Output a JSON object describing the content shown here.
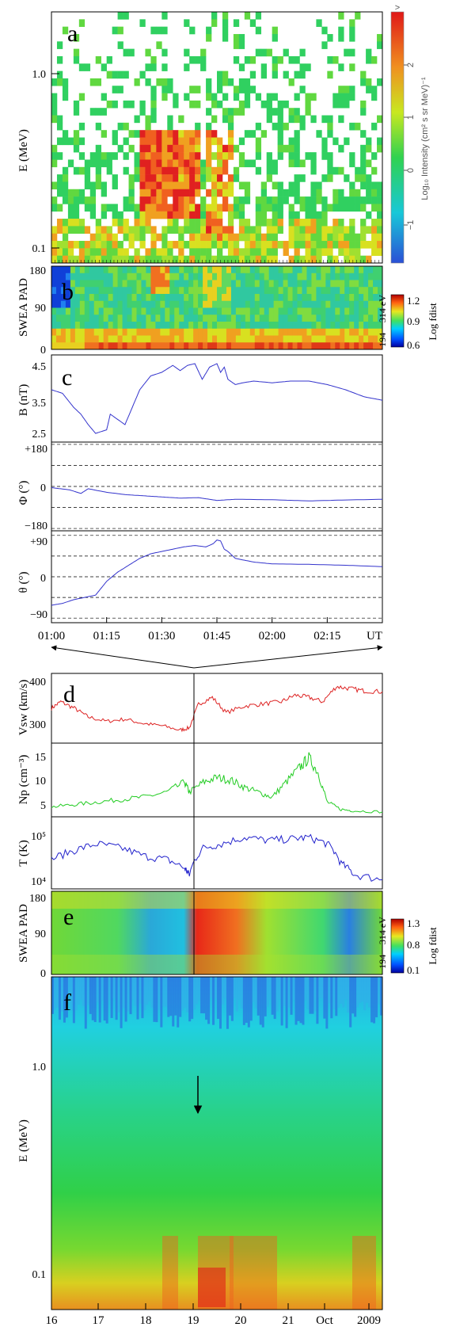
{
  "figure": {
    "panel_letters": [
      "a",
      "b",
      "c",
      "d",
      "e",
      "f"
    ]
  },
  "colorbars": {
    "top": {
      "title": "Log₁₀ Intensity (cm² s sr MeV)⁻¹",
      "ticks": [
        "2",
        "1",
        "0",
        "−1"
      ],
      "overflow_mark": ">"
    },
    "swea1": {
      "energy": "194 − 314 eV",
      "title": "Log fdist",
      "ticks": [
        "1.2",
        "0.9",
        "0.6"
      ]
    },
    "swea2": {
      "energy": "194 − 314 eV",
      "title": "Log fdist",
      "ticks": [
        "1.3",
        "0.8",
        "0.1"
      ]
    }
  },
  "chart_data": [
    {
      "panel": "a",
      "type": "heatmap",
      "ylabel": "E (MeV)",
      "yscale": "log",
      "ytick_labels": [
        "1.0",
        "0.1"
      ],
      "x_range": [
        "01:00",
        "02:30"
      ],
      "note": "sparse counts with an enhancement near 01:24-01:40 at 0.15-0.3 MeV"
    },
    {
      "panel": "b",
      "type": "heatmap",
      "ylabel": "SWEA PAD",
      "ytick_labels": [
        "180",
        "90",
        "0"
      ],
      "ylim": [
        0,
        180
      ],
      "color_range": [
        0.6,
        1.2
      ]
    },
    {
      "panel": "c",
      "type": "line",
      "ylabel": "B (nT)",
      "ytick_labels": [
        "4.5",
        "3.5",
        "2.5"
      ],
      "ylim": [
        2.3,
        4.8
      ],
      "x": [
        0,
        3,
        6,
        8,
        10,
        12,
        15,
        16,
        20,
        24,
        27,
        30,
        33,
        35,
        37,
        39,
        41,
        43,
        45,
        46,
        47,
        48,
        50,
        52,
        55,
        60,
        65,
        70,
        75,
        80,
        85,
        90
      ],
      "values": [
        3.8,
        3.7,
        3.3,
        3.1,
        2.8,
        2.55,
        2.65,
        3.1,
        2.8,
        3.8,
        4.2,
        4.3,
        4.5,
        4.35,
        4.5,
        4.55,
        4.1,
        4.45,
        4.55,
        4.3,
        4.45,
        4.1,
        3.95,
        4.0,
        4.05,
        4.0,
        4.05,
        4.05,
        3.95,
        3.8,
        3.6,
        3.5
      ],
      "color": "#3333cc"
    },
    {
      "panel": "c",
      "type": "line",
      "ylabel": "Φ (°)",
      "ytick_labels": [
        "+180",
        "0",
        "−180"
      ],
      "ylim": [
        -190,
        190
      ],
      "reference_lines": [
        180,
        90,
        0,
        -90,
        -180
      ],
      "x": [
        0,
        5,
        8,
        10,
        15,
        20,
        25,
        30,
        35,
        40,
        45,
        50,
        60,
        70,
        80,
        90
      ],
      "values": [
        -5,
        -15,
        -30,
        -10,
        -25,
        -35,
        -40,
        -45,
        -50,
        -48,
        -60,
        -55,
        -57,
        -62,
        -58,
        -55
      ],
      "color": "#3333cc"
    },
    {
      "panel": "c",
      "type": "line",
      "ylabel": "θ (°)",
      "ytick_labels": [
        "+90",
        "0",
        "−90"
      ],
      "ylim": [
        -100,
        100
      ],
      "reference_lines": [
        90,
        45,
        0,
        -45,
        -90
      ],
      "x": [
        0,
        3,
        6,
        9,
        12,
        15,
        18,
        21,
        24,
        27,
        30,
        33,
        36,
        39,
        42,
        44,
        45,
        46,
        47,
        48,
        50,
        55,
        60,
        70,
        80,
        90
      ],
      "values": [
        -62,
        -58,
        -50,
        -45,
        -40,
        -10,
        10,
        25,
        40,
        50,
        55,
        60,
        65,
        68,
        65,
        72,
        80,
        78,
        60,
        55,
        40,
        32,
        28,
        27,
        25,
        22
      ],
      "color": "#3333cc",
      "x_tick_labels": [
        "01:00",
        "01:15",
        "01:30",
        "01:45",
        "02:00",
        "02:15",
        "UT"
      ]
    },
    {
      "panel": "d",
      "type": "line",
      "ylabel": "Vsw (km/s)",
      "ytick_labels": [
        "400",
        "300"
      ],
      "ylim": [
        250,
        410
      ],
      "x": [
        16,
        16.2,
        16.5,
        16.8,
        17.2,
        17.6,
        18.0,
        18.4,
        18.8,
        19.0,
        19.2,
        19.5,
        19.8,
        20.2,
        20.6,
        21.0,
        21.3,
        21.6,
        21.9,
        22.2,
        22.5,
        22.8,
        23.2
      ],
      "values": [
        330,
        345,
        330,
        310,
        300,
        305,
        295,
        290,
        280,
        285,
        340,
        355,
        320,
        335,
        340,
        345,
        360,
        355,
        345,
        380,
        375,
        370,
        368
      ],
      "color": "#dd2222"
    },
    {
      "panel": "d",
      "type": "line",
      "ylabel": "Np (cm⁻³)",
      "ytick_labels": [
        "15",
        "10",
        "5"
      ],
      "ylim": [
        2,
        17
      ],
      "x": [
        16,
        16.5,
        17.0,
        17.5,
        18.0,
        18.5,
        18.9,
        19.0,
        19.3,
        19.6,
        19.9,
        20.2,
        20.5,
        20.8,
        21.1,
        21.4,
        21.6,
        21.8,
        22.0,
        22.3,
        22.6,
        23.2
      ],
      "values": [
        4,
        4.5,
        5,
        5.5,
        6,
        7,
        9,
        7,
        9,
        10,
        9.5,
        8,
        7,
        6,
        9,
        12,
        14,
        11,
        5,
        3.5,
        3.2,
        3
      ],
      "color": "#22cc22"
    },
    {
      "panel": "d",
      "type": "line",
      "ylabel": "T (K)",
      "ytick_labels": [
        "10⁵",
        "10⁴"
      ],
      "yscale": "log",
      "ylim": [
        8000,
        200000
      ],
      "x": [
        16,
        16.5,
        17.0,
        17.5,
        18.0,
        18.5,
        18.9,
        19.0,
        19.3,
        19.7,
        20.2,
        20.7,
        21.2,
        21.6,
        22.0,
        22.3,
        22.6,
        23.2
      ],
      "values": [
        30000,
        45000,
        60000,
        50000,
        35000,
        30000,
        20000,
        15000,
        50000,
        60000,
        80000,
        70000,
        75000,
        80000,
        60000,
        25000,
        15000,
        12000
      ],
      "color": "#2222cc"
    },
    {
      "panel": "e",
      "type": "heatmap",
      "ylabel": "SWEA PAD",
      "ytick_labels": [
        "180",
        "90",
        "0"
      ],
      "ylim": [
        0,
        180
      ],
      "color_range": [
        0.1,
        1.3
      ]
    },
    {
      "panel": "f",
      "type": "heatmap",
      "ylabel": "E (MeV)",
      "yscale": "log",
      "ytick_labels": [
        "1.0",
        "0.1"
      ],
      "x_tick_labels": [
        "16",
        "17",
        "18",
        "19",
        "20",
        "21",
        "Oct",
        "2009"
      ],
      "note": "arrow marks onset near 19 Oct"
    }
  ]
}
